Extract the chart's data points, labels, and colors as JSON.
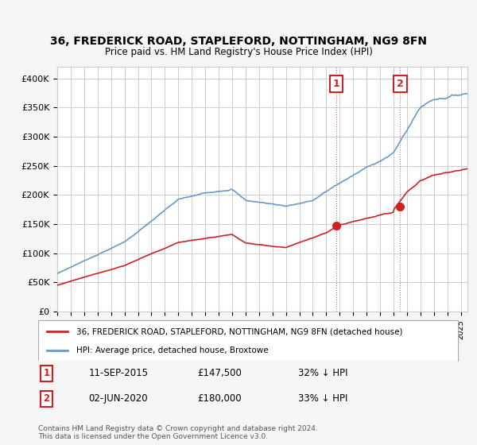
{
  "title1": "36, FREDERICK ROAD, STAPLEFORD, NOTTINGHAM, NG9 8FN",
  "title2": "Price paid vs. HM Land Registry's House Price Index (HPI)",
  "legend_line1": "36, FREDERICK ROAD, STAPLEFORD, NOTTINGHAM, NG9 8FN (detached house)",
  "legend_line2": "HPI: Average price, detached house, Broxtowe",
  "annotation1_label": "1",
  "annotation1_date": "11-SEP-2015",
  "annotation1_price": "£147,500",
  "annotation1_hpi": "32% ↓ HPI",
  "annotation2_label": "2",
  "annotation2_date": "02-JUN-2020",
  "annotation2_price": "£180,000",
  "annotation2_hpi": "33% ↓ HPI",
  "footer": "Contains HM Land Registry data © Crown copyright and database right 2024.\nThis data is licensed under the Open Government Licence v3.0.",
  "hpi_color": "#6699cc",
  "price_color": "#cc2222",
  "marker_color": "#cc2222",
  "background_color": "#f5f5f5",
  "plot_bg_color": "#ffffff",
  "ylim": [
    0,
    420000
  ],
  "yticks": [
    0,
    50000,
    100000,
    150000,
    200000,
    250000,
    300000,
    350000,
    400000
  ],
  "xstart": 1995.0,
  "xend": 2025.5
}
